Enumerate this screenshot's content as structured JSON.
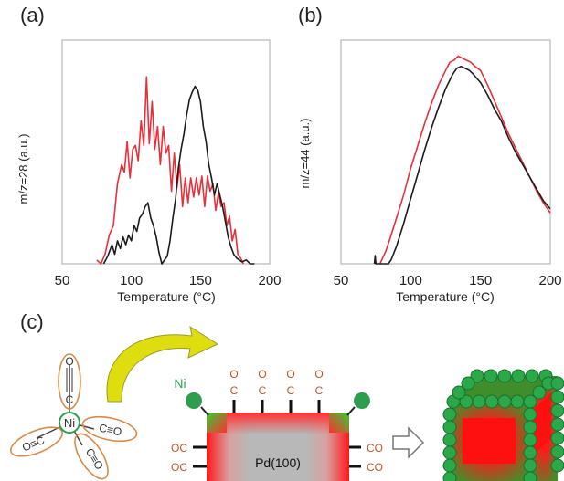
{
  "chart_data": [
    {
      "type": "line",
      "panel_label": "(a)",
      "xlabel": "Temperature (°C)",
      "ylabel": "m/z=28 (a.u.)",
      "xlim": [
        50,
        200
      ],
      "xticks": [
        50,
        100,
        150,
        200
      ],
      "ylim": [
        0,
        1
      ],
      "grid": false,
      "series": [
        {
          "color": "#e8303a",
          "x": [
            75,
            78,
            81,
            84,
            87,
            90,
            93,
            95,
            97,
            99,
            101,
            103,
            105,
            107,
            109,
            111,
            113,
            115,
            117,
            119,
            121,
            123,
            125,
            127,
            129,
            131,
            133,
            135,
            137,
            139,
            141,
            143,
            145,
            147,
            149,
            151,
            153,
            155,
            157,
            159,
            161,
            163,
            165,
            167,
            169,
            171,
            173,
            175,
            177,
            179,
            181
          ],
          "y": [
            0.02,
            0.0,
            0.05,
            0.15,
            0.2,
            0.42,
            0.52,
            0.48,
            0.64,
            0.45,
            0.6,
            0.62,
            0.54,
            0.75,
            0.62,
            0.98,
            0.63,
            0.85,
            0.6,
            0.72,
            0.52,
            0.72,
            0.58,
            0.62,
            0.38,
            0.58,
            0.4,
            0.52,
            0.3,
            0.45,
            0.32,
            0.45,
            0.35,
            0.45,
            0.36,
            0.46,
            0.3,
            0.46,
            0.38,
            0.42,
            0.28,
            0.37,
            0.3,
            0.32,
            0.2,
            0.25,
            0.12,
            0.18,
            0.05,
            0.03,
            0.0
          ]
        },
        {
          "color": "#1c1c1c",
          "x": [
            80,
            83,
            86,
            88,
            90,
            92,
            94,
            96,
            98,
            100,
            102,
            104,
            106,
            108,
            110,
            112,
            114,
            116,
            118,
            120,
            122,
            124,
            126,
            128,
            130,
            132,
            134,
            136,
            138,
            140,
            142,
            144,
            146,
            148,
            150,
            152,
            154,
            156,
            158,
            160,
            162,
            164,
            166,
            168,
            170,
            172,
            174,
            176,
            178,
            180,
            183,
            186,
            189
          ],
          "y": [
            0.0,
            0.04,
            0.1,
            0.05,
            0.12,
            0.08,
            0.14,
            0.1,
            0.15,
            0.12,
            0.2,
            0.17,
            0.24,
            0.26,
            0.3,
            0.32,
            0.24,
            0.2,
            0.14,
            0.06,
            0.0,
            0.02,
            0.04,
            0.12,
            0.24,
            0.34,
            0.5,
            0.6,
            0.68,
            0.78,
            0.86,
            0.9,
            0.93,
            0.91,
            0.85,
            0.72,
            0.64,
            0.52,
            0.45,
            0.36,
            0.42,
            0.36,
            0.3,
            0.22,
            0.14,
            0.09,
            0.05,
            0.03,
            0.02,
            0.01,
            0.02,
            0.0,
            0.0
          ]
        }
      ]
    },
    {
      "type": "line",
      "panel_label": "(b)",
      "xlabel": "Temperature (°C)",
      "ylabel": "m/z=44 (a.u.)",
      "xlim": [
        50,
        200
      ],
      "xticks": [
        50,
        100,
        150,
        200
      ],
      "ylim": [
        0,
        1
      ],
      "grid": false,
      "series": [
        {
          "color": "#e8303a",
          "x": [
            78,
            80,
            82,
            85,
            90,
            95,
            100,
            105,
            110,
            115,
            120,
            125,
            128,
            131,
            134,
            137,
            140,
            143,
            146,
            150,
            155,
            160,
            165,
            170,
            175,
            180,
            185,
            190,
            195,
            200
          ],
          "y": [
            0.0,
            0.03,
            0.06,
            0.12,
            0.23,
            0.34,
            0.47,
            0.58,
            0.69,
            0.79,
            0.88,
            0.95,
            0.99,
            1.0,
            1.02,
            1.01,
            1.0,
            0.99,
            0.97,
            0.95,
            0.88,
            0.8,
            0.72,
            0.64,
            0.57,
            0.5,
            0.43,
            0.36,
            0.3,
            0.25
          ]
        },
        {
          "color": "#1c1c1c",
          "x": [
            74,
            74.5,
            75,
            76,
            80,
            84,
            86,
            90,
            95,
            100,
            105,
            110,
            115,
            120,
            125,
            130,
            133,
            136,
            139,
            142,
            145,
            150,
            155,
            160,
            165,
            170,
            175,
            180,
            185,
            190,
            195,
            200
          ],
          "y": [
            0.0,
            0.04,
            0.0,
            0.0,
            0.0,
            0.0,
            0.02,
            0.09,
            0.2,
            0.32,
            0.44,
            0.56,
            0.67,
            0.77,
            0.86,
            0.93,
            0.96,
            0.97,
            0.96,
            0.95,
            0.93,
            0.89,
            0.83,
            0.76,
            0.7,
            0.62,
            0.55,
            0.49,
            0.43,
            0.37,
            0.31,
            0.27
          ]
        }
      ]
    }
  ],
  "schematic": {
    "panel_label": "(c)",
    "ni_center": "Ni",
    "carbonyl_o": "O",
    "carbonyl_c": "C",
    "ligand_labels": [
      "O≡C",
      "C≡O",
      "C≡O"
    ],
    "ni_atom_label": "Ni",
    "top_o": [
      "O",
      "O",
      "O",
      "O"
    ],
    "top_c": [
      "C",
      "C",
      "C",
      "C"
    ],
    "left_labels": [
      "OC",
      "OC"
    ],
    "right_labels": [
      "CO",
      "CO"
    ],
    "surface_label": "Pd(100)",
    "colors": {
      "ni_green": "#2e9e4e",
      "ligand_ring": "#d98a4a",
      "arrow_yellow": "#d8d800",
      "pd_gray": "#b5b5b5",
      "red": "#ff1010",
      "co_orange": "#c0552a"
    }
  }
}
